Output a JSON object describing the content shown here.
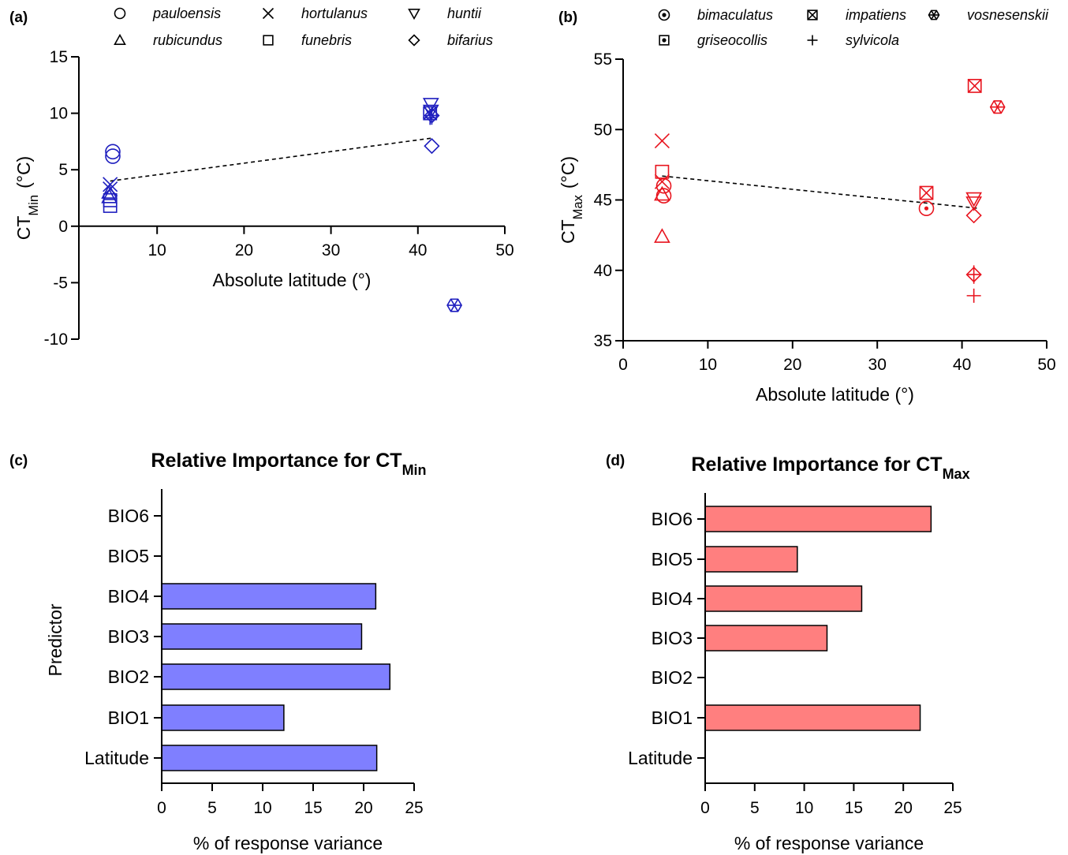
{
  "panels": [
    {
      "id": "a",
      "label": "(a)"
    },
    {
      "id": "b",
      "label": "(b)"
    },
    {
      "id": "c",
      "label": "(c)"
    },
    {
      "id": "d",
      "label": "(d)"
    }
  ],
  "colors": {
    "ctmin": "#1f1fbf",
    "ctmax": "#e8141e",
    "bar_min": "#7f7fff",
    "bar_max": "#ff7f7f"
  },
  "chart_data": [
    {
      "id": "a",
      "type": "scatter",
      "xlabel": "Absolute latitude (°)",
      "ylabel": "CT",
      "ylabel_sub": "Min",
      "ylabel_unit": "(°C)",
      "xlim": [
        1,
        50
      ],
      "ylim": [
        -10,
        15
      ],
      "xticks": [
        10,
        20,
        30,
        40,
        50
      ],
      "yticks": [
        -10,
        -5,
        0,
        5,
        10,
        15
      ],
      "legend": [
        {
          "name": "pauloensis",
          "marker": "circle"
        },
        {
          "name": "hortulanus",
          "marker": "x"
        },
        {
          "name": "huntii",
          "marker": "triangle-down"
        },
        {
          "name": "rubicundus",
          "marker": "triangle-up"
        },
        {
          "name": "funebris",
          "marker": "square"
        },
        {
          "name": "bifarius",
          "marker": "diamond"
        }
      ],
      "points": [
        {
          "x": 4.9,
          "y": 6.6,
          "marker": "circle"
        },
        {
          "x": 4.9,
          "y": 6.2,
          "marker": "circle"
        },
        {
          "x": 4.6,
          "y": 3.7,
          "marker": "x"
        },
        {
          "x": 4.6,
          "y": 3.3,
          "marker": "x"
        },
        {
          "x": 4.5,
          "y": 3.0,
          "marker": "triangle-up"
        },
        {
          "x": 4.5,
          "y": 2.6,
          "marker": "triangle-up"
        },
        {
          "x": 4.6,
          "y": 2.3,
          "marker": "square"
        },
        {
          "x": 4.6,
          "y": 1.8,
          "marker": "square"
        },
        {
          "x": 41.5,
          "y": 10.8,
          "marker": "triangle-down"
        },
        {
          "x": 41.5,
          "y": 10.2,
          "marker": "triangle-down"
        },
        {
          "x": 41.4,
          "y": 10.0,
          "marker": "square-x"
        },
        {
          "x": 41.4,
          "y": 9.6,
          "marker": "plus"
        },
        {
          "x": 41.6,
          "y": 9.8,
          "marker": "diamond-plus"
        },
        {
          "x": 41.6,
          "y": 7.1,
          "marker": "diamond"
        },
        {
          "x": 44.2,
          "y": -7.0,
          "marker": "hex-x"
        }
      ],
      "trend": [
        [
          4.6,
          4.0
        ],
        [
          41.6,
          7.8
        ]
      ]
    },
    {
      "id": "b",
      "type": "scatter",
      "xlabel": "Absolute latitude (°)",
      "ylabel": "CT",
      "ylabel_sub": "Max",
      "ylabel_unit": "(°C)",
      "xlim": [
        0,
        50
      ],
      "ylim": [
        35,
        55
      ],
      "xticks": [
        0,
        10,
        20,
        30,
        40,
        50
      ],
      "yticks": [
        35,
        40,
        45,
        50,
        55
      ],
      "legend": [
        {
          "name": "bimaculatus",
          "marker": "circle-dot"
        },
        {
          "name": "impatiens",
          "marker": "square-x"
        },
        {
          "name": "vosnesenskii",
          "marker": "hex-x"
        },
        {
          "name": "griseocollis",
          "marker": "square-dot"
        },
        {
          "name": "sylvicola",
          "marker": "plus"
        }
      ],
      "points": [
        {
          "x": 4.6,
          "y": 49.2,
          "marker": "x"
        },
        {
          "x": 4.6,
          "y": 47.0,
          "marker": "square"
        },
        {
          "x": 4.6,
          "y": 46.3,
          "marker": "x"
        },
        {
          "x": 4.8,
          "y": 46.0,
          "marker": "circle"
        },
        {
          "x": 4.6,
          "y": 45.4,
          "marker": "triangle-up"
        },
        {
          "x": 4.8,
          "y": 45.3,
          "marker": "circle"
        },
        {
          "x": 4.6,
          "y": 42.4,
          "marker": "triangle-up"
        },
        {
          "x": 35.8,
          "y": 45.5,
          "marker": "square-x"
        },
        {
          "x": 35.8,
          "y": 44.4,
          "marker": "circle-dot"
        },
        {
          "x": 41.5,
          "y": 53.1,
          "marker": "square-x"
        },
        {
          "x": 44.2,
          "y": 51.6,
          "marker": "hex-x"
        },
        {
          "x": 41.4,
          "y": 45.1,
          "marker": "triangle-down"
        },
        {
          "x": 41.4,
          "y": 44.8,
          "marker": "triangle-down"
        },
        {
          "x": 41.4,
          "y": 43.9,
          "marker": "diamond"
        },
        {
          "x": 41.4,
          "y": 39.7,
          "marker": "diamond-plus"
        },
        {
          "x": 41.4,
          "y": 38.2,
          "marker": "plus"
        }
      ],
      "trend": [
        [
          4.6,
          46.7
        ],
        [
          42.0,
          44.4
        ]
      ]
    },
    {
      "id": "c",
      "type": "bar",
      "orientation": "horizontal",
      "title": "Relative Importance for CT",
      "title_sub": "Min",
      "xlabel": "% of response variance",
      "ylabel": "Predictor",
      "xlim": [
        0,
        25
      ],
      "xticks": [
        0,
        5,
        10,
        15,
        20,
        25
      ],
      "categories": [
        "BIO6",
        "BIO5",
        "BIO4",
        "BIO3",
        "BIO2",
        "BIO1",
        "Latitude"
      ],
      "values": [
        0,
        0,
        21.2,
        19.8,
        22.6,
        12.1,
        21.3
      ]
    },
    {
      "id": "d",
      "type": "bar",
      "orientation": "horizontal",
      "title": "Relative Importance for CT",
      "title_sub": "Max",
      "xlabel": "% of response variance",
      "ylabel": "",
      "xlim": [
        0,
        25
      ],
      "xticks": [
        0,
        5,
        10,
        15,
        20,
        25
      ],
      "categories": [
        "BIO6",
        "BIO5",
        "BIO4",
        "BIO3",
        "BIO2",
        "BIO1",
        "Latitude"
      ],
      "values": [
        22.8,
        9.3,
        15.8,
        12.3,
        0,
        21.7,
        0
      ]
    }
  ]
}
